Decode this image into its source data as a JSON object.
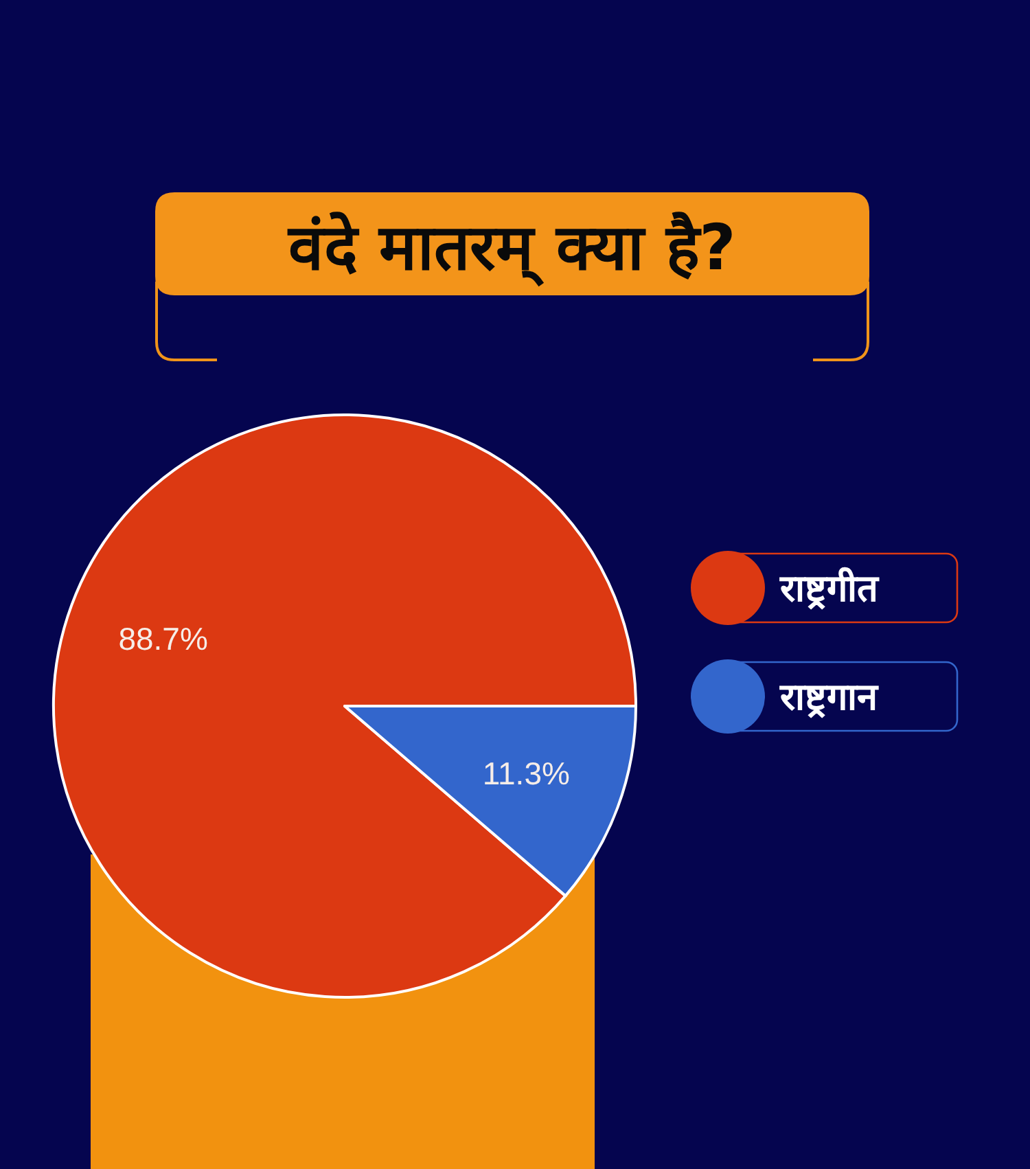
{
  "chart_data": {
    "type": "pie",
    "title": "वंदे मातरम् क्या है?",
    "categories": [
      "राष्ट्रगीत",
      "राष्ट्रगान"
    ],
    "values": [
      88.7,
      11.3
    ],
    "colors": [
      "#dc3912",
      "#3366cc"
    ],
    "value_labels": [
      "88.7%",
      "11.3%"
    ],
    "legend": "right"
  }
}
